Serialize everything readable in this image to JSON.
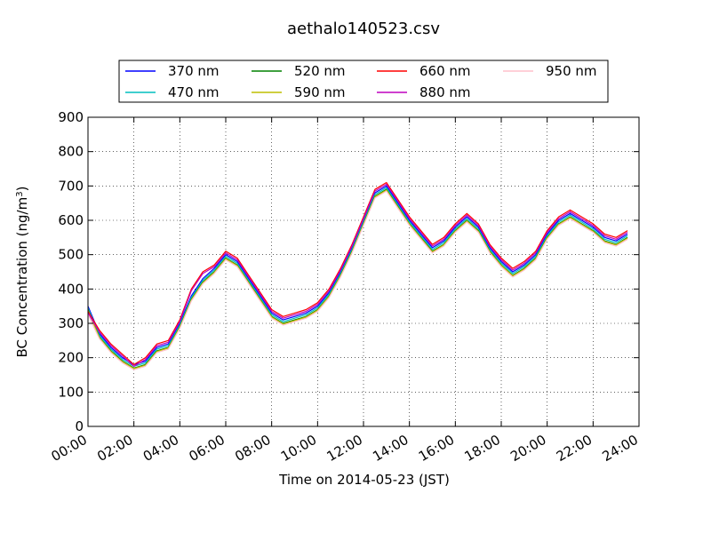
{
  "chart_data": {
    "type": "line",
    "title": "aethalo140523.csv",
    "xlabel": "Time on 2014-05-23 (JST)",
    "ylabel_main": "BC Concentration (ng/m",
    "ylabel_sup": "3",
    "ylabel_end": ")",
    "xlim_hours": [
      0,
      24
    ],
    "ylim": [
      0,
      900
    ],
    "grid": true,
    "legend_position": "top",
    "x_ticks": [
      "00:00",
      "02:00",
      "04:00",
      "06:00",
      "08:00",
      "10:00",
      "12:00",
      "14:00",
      "16:00",
      "18:00",
      "20:00",
      "22:00",
      "24:00"
    ],
    "y_ticks": [
      0,
      100,
      200,
      300,
      400,
      500,
      600,
      700,
      800,
      900
    ],
    "x": [
      "00:00",
      "00:30",
      "01:00",
      "01:30",
      "02:00",
      "02:30",
      "03:00",
      "03:30",
      "04:00",
      "04:30",
      "05:00",
      "05:30",
      "06:00",
      "06:30",
      "07:00",
      "07:30",
      "08:00",
      "08:30",
      "09:00",
      "09:30",
      "10:00",
      "10:30",
      "11:00",
      "11:30",
      "12:00",
      "12:30",
      "13:00",
      "13:30",
      "14:00",
      "14:30",
      "15:00",
      "15:30",
      "16:00",
      "16:30",
      "17:00",
      "17:30",
      "18:00",
      "18:30",
      "19:00",
      "19:30",
      "20:00",
      "20:30",
      "21:00",
      "21:30",
      "22:00",
      "22:30",
      "23:00",
      "23:30"
    ],
    "series": [
      {
        "name": "370 nm",
        "color": "#0000ff",
        "values": [
          350,
          270,
          230,
          200,
          180,
          190,
          230,
          240,
          300,
          380,
          430,
          460,
          500,
          480,
          430,
          380,
          330,
          310,
          320,
          330,
          350,
          390,
          450,
          520,
          600,
          680,
          700,
          650,
          600,
          560,
          520,
          540,
          580,
          610,
          580,
          520,
          480,
          450,
          470,
          500,
          560,
          600,
          620,
          600,
          580,
          550,
          540,
          560
        ]
      },
      {
        "name": "470 nm",
        "color": "#00bfbf",
        "values": [
          345,
          265,
          225,
          195,
          175,
          185,
          225,
          235,
          295,
          375,
          425,
          455,
          495,
          475,
          425,
          375,
          325,
          305,
          315,
          325,
          345,
          385,
          445,
          515,
          595,
          675,
          695,
          645,
          595,
          555,
          515,
          535,
          575,
          605,
          575,
          515,
          475,
          445,
          465,
          495,
          555,
          595,
          615,
          595,
          575,
          545,
          535,
          555
        ]
      },
      {
        "name": "520 nm",
        "color": "#008000",
        "values": [
          340,
          260,
          220,
          190,
          170,
          180,
          220,
          230,
          290,
          370,
          420,
          450,
          490,
          470,
          420,
          370,
          320,
          300,
          310,
          320,
          340,
          380,
          440,
          510,
          590,
          670,
          690,
          640,
          590,
          550,
          510,
          530,
          570,
          600,
          570,
          510,
          470,
          440,
          460,
          490,
          550,
          590,
          610,
          590,
          570,
          540,
          530,
          550
        ]
      },
      {
        "name": "590 nm",
        "color": "#bfbf00",
        "values": [
          338,
          258,
          218,
          188,
          168,
          178,
          218,
          228,
          288,
          368,
          418,
          448,
          488,
          468,
          418,
          368,
          318,
          298,
          308,
          318,
          338,
          378,
          438,
          508,
          588,
          668,
          688,
          638,
          588,
          548,
          508,
          528,
          568,
          598,
          568,
          508,
          468,
          438,
          458,
          488,
          548,
          588,
          608,
          588,
          568,
          538,
          528,
          548
        ]
      },
      {
        "name": "660 nm",
        "color": "#ff0000",
        "values": [
          335,
          280,
          240,
          210,
          180,
          200,
          240,
          250,
          310,
          400,
          450,
          470,
          510,
          490,
          440,
          390,
          340,
          320,
          330,
          340,
          360,
          400,
          460,
          530,
          610,
          690,
          710,
          660,
          610,
          570,
          530,
          550,
          590,
          620,
          590,
          530,
          490,
          460,
          480,
          510,
          570,
          610,
          630,
          610,
          590,
          560,
          550,
          570
        ]
      },
      {
        "name": "880 nm",
        "color": "#bf00bf",
        "values": [
          330,
          275,
          235,
          205,
          175,
          195,
          235,
          245,
          305,
          395,
          445,
          465,
          505,
          485,
          435,
          385,
          335,
          315,
          325,
          335,
          355,
          395,
          455,
          525,
          605,
          685,
          705,
          655,
          605,
          565,
          525,
          545,
          585,
          615,
          585,
          525,
          485,
          455,
          475,
          505,
          565,
          605,
          625,
          605,
          585,
          555,
          545,
          565
        ]
      },
      {
        "name": "950 nm",
        "color": "#ffc0cb",
        "values": [
          325,
          255,
          215,
          185,
          165,
          175,
          215,
          225,
          285,
          365,
          415,
          445,
          485,
          465,
          415,
          365,
          315,
          295,
          305,
          315,
          335,
          375,
          435,
          505,
          585,
          665,
          685,
          635,
          585,
          545,
          505,
          525,
          565,
          595,
          565,
          505,
          465,
          435,
          455,
          485,
          545,
          585,
          605,
          585,
          565,
          535,
          525,
          545
        ]
      }
    ]
  }
}
